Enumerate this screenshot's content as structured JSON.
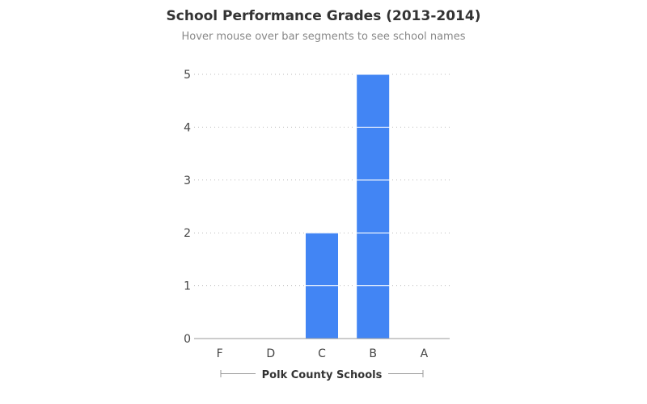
{
  "chart_data": {
    "type": "bar",
    "stacked": true,
    "title": "School Performance Grades (2013-2014)",
    "subtitle": "Hover mouse over bar segments to see school names",
    "xlabel": "Polk County Schools",
    "ylabel": "",
    "categories": [
      "F",
      "D",
      "C",
      "B",
      "A"
    ],
    "values": [
      0,
      0,
      2,
      5,
      0
    ],
    "segment_value": 1,
    "ylim": [
      0,
      5
    ],
    "yticks": [
      "0",
      "1",
      "2",
      "3",
      "4",
      "5"
    ],
    "grid": true,
    "legend": "none",
    "colors": {
      "bar": "#4285f4",
      "segment_divider": "#ffffff",
      "grid": "#bbbbbb",
      "axis": "#999999"
    }
  }
}
